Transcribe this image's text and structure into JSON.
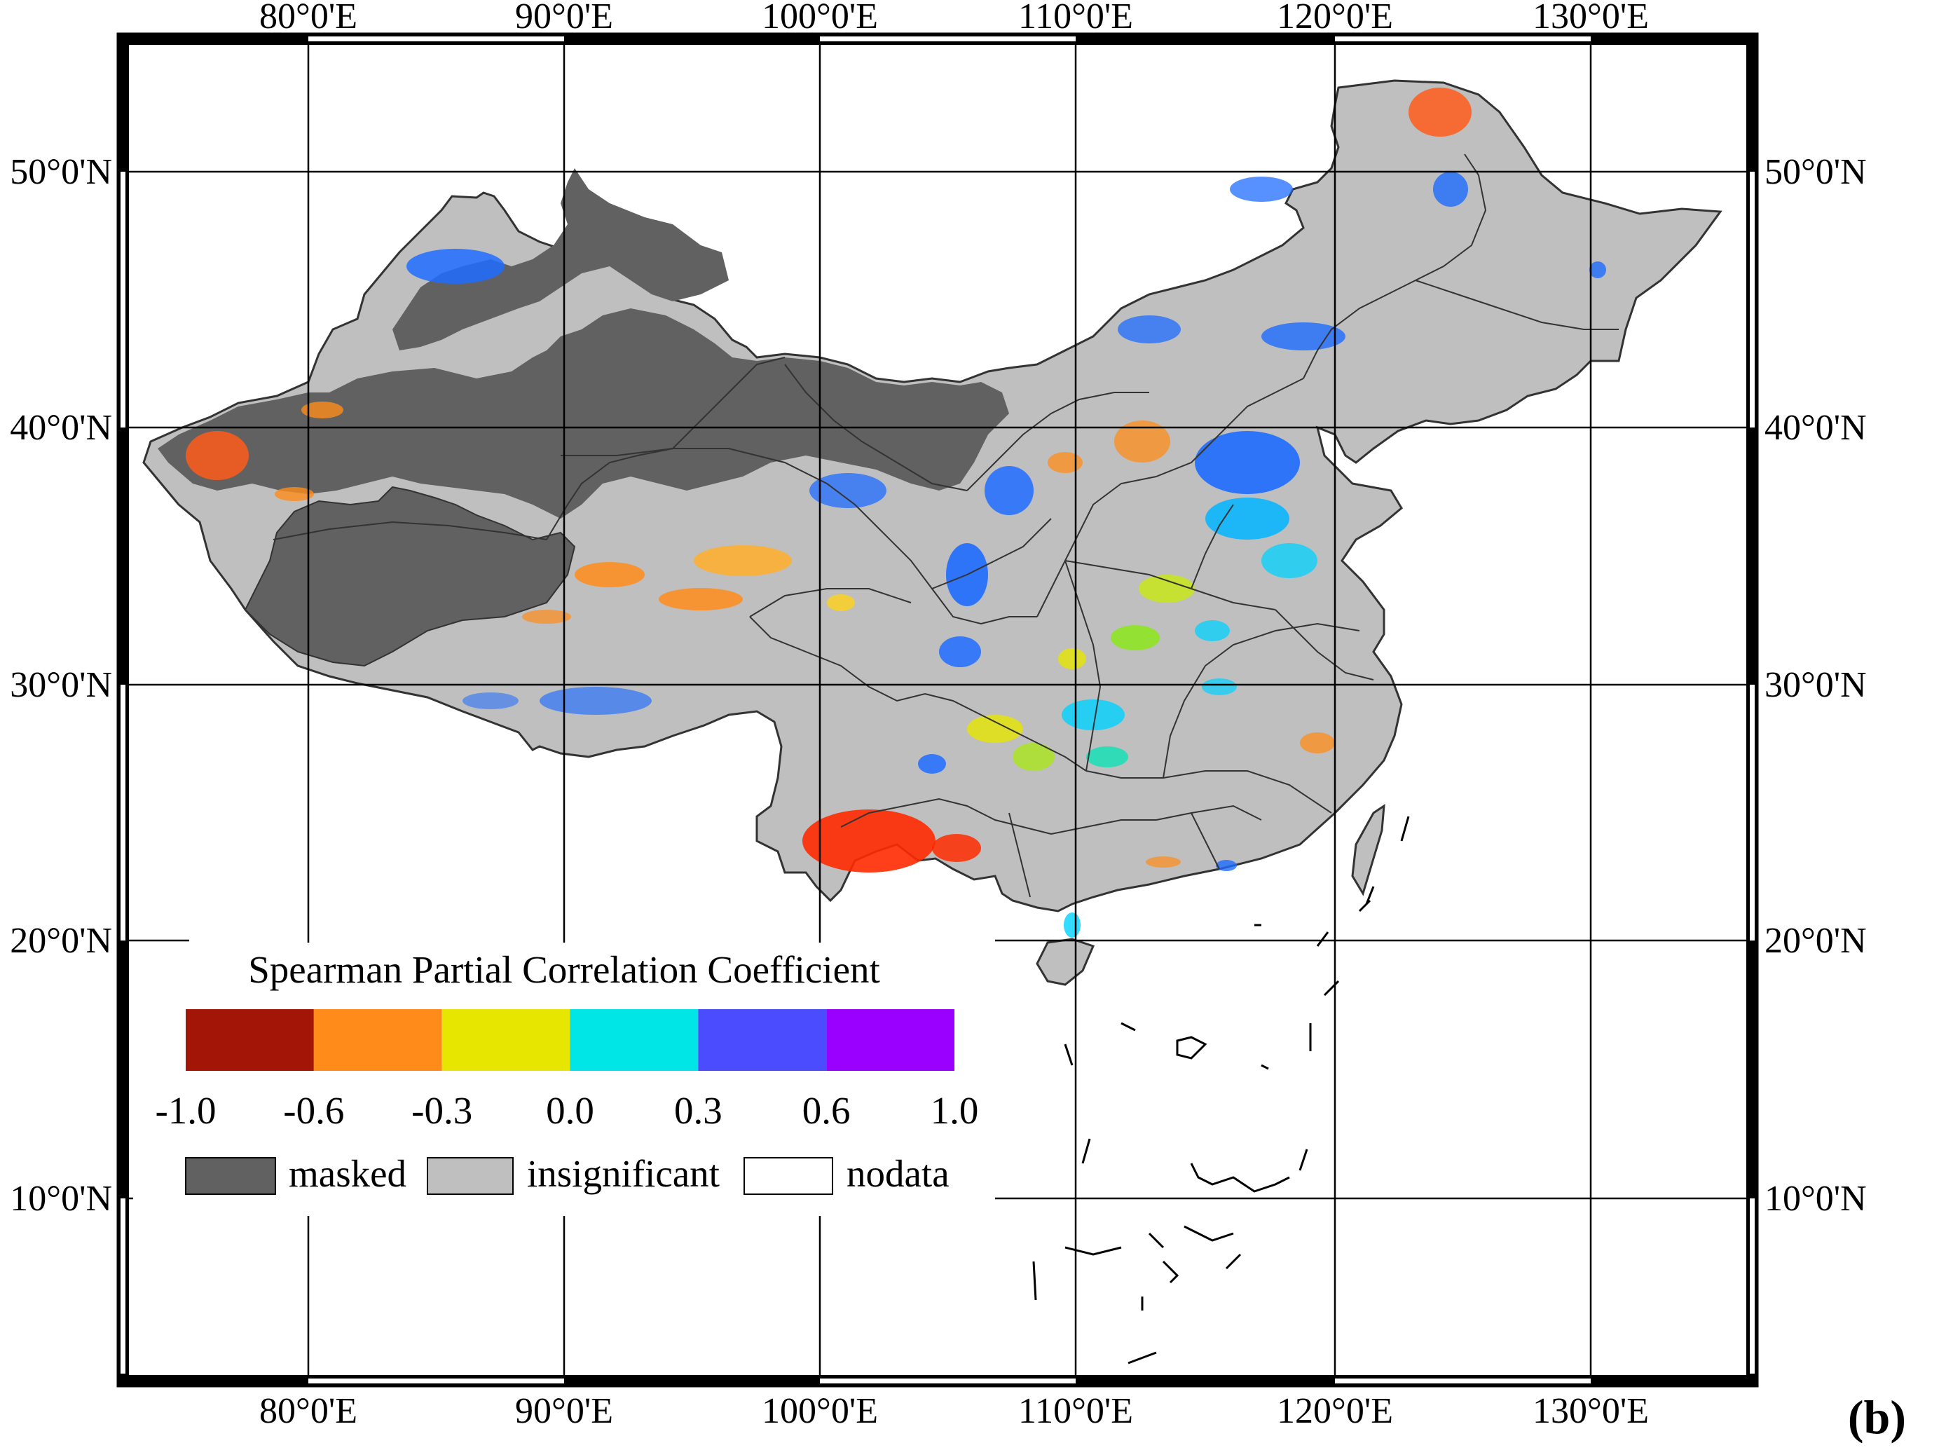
{
  "map": {
    "panel_label": "(b)",
    "lon_ticks": [
      "80°0'E",
      "90°0'E",
      "100°0'E",
      "110°0'E",
      "120°0'E",
      "130°0'E"
    ],
    "lat_ticks": [
      "50°0'N",
      "40°0'N",
      "30°0'N",
      "20°0'N",
      "10°0'N"
    ],
    "legend": {
      "title": "Spearman Partial Correlation Coefficient",
      "bins": [
        {
          "from": -1.0,
          "to": -0.6,
          "color": "#a31506"
        },
        {
          "from": -0.6,
          "to": -0.3,
          "color": "#ff8c1a"
        },
        {
          "from": -0.3,
          "to": 0.0,
          "color": "#e6e600"
        },
        {
          "from": 0.0,
          "to": 0.3,
          "color": "#00e6e6"
        },
        {
          "from": 0.3,
          "to": 0.6,
          "color": "#4c4cff"
        },
        {
          "from": 0.6,
          "to": 1.0,
          "color": "#9900ff"
        }
      ],
      "tick_labels": [
        "-1.0",
        "-0.6",
        "-0.3",
        "0.0",
        "0.3",
        "0.6",
        "1.0"
      ],
      "categories": [
        {
          "label": "masked",
          "color": "#616161"
        },
        {
          "label": "insignificant",
          "color": "#bfbfbf"
        },
        {
          "label": "nodata",
          "color": "#ffffff"
        }
      ]
    },
    "colors": {
      "masked": "#616161",
      "insignificant": "#bfbfbf",
      "negative_strong": "#ff2a00",
      "negative_mid": "#ff8c1a",
      "positive_mid": "#1e6cff",
      "positive_weak": "#00d2ff"
    }
  }
}
